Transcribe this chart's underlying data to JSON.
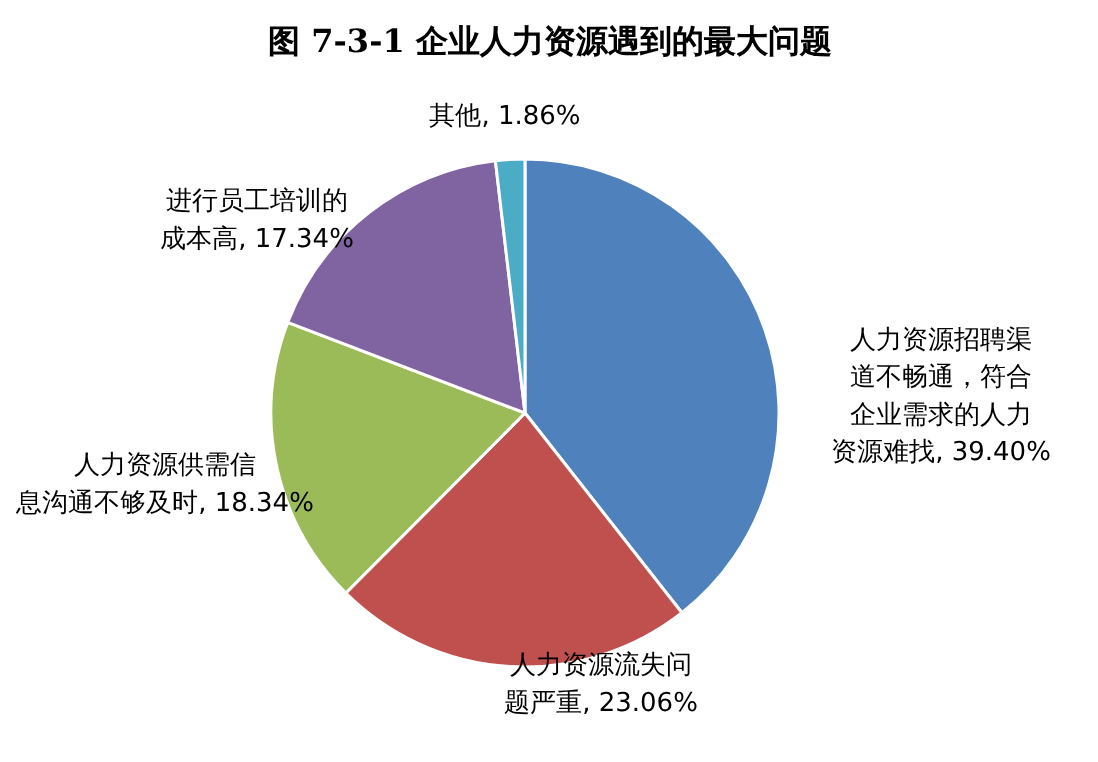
{
  "chart_data": {
    "type": "pie",
    "title": "图 7-3-1 企业人力资源遇到的最大问题",
    "categories": [
      "人力资源招聘渠道不畅通，符合企业需求的人力资源难找",
      "人力资源流失问题严重",
      "人力资源供需信息沟通不够及时",
      "进行员工培训的成本高",
      "其他"
    ],
    "values": [
      39.4,
      23.06,
      18.34,
      17.34,
      1.86
    ],
    "value_labels": [
      "39.40%",
      "23.06%",
      "18.34%",
      "17.34%",
      "1.86%"
    ],
    "colors": [
      "#4f81bd",
      "#c0504d",
      "#9bbb59",
      "#8064a2",
      "#4bacc6"
    ]
  }
}
